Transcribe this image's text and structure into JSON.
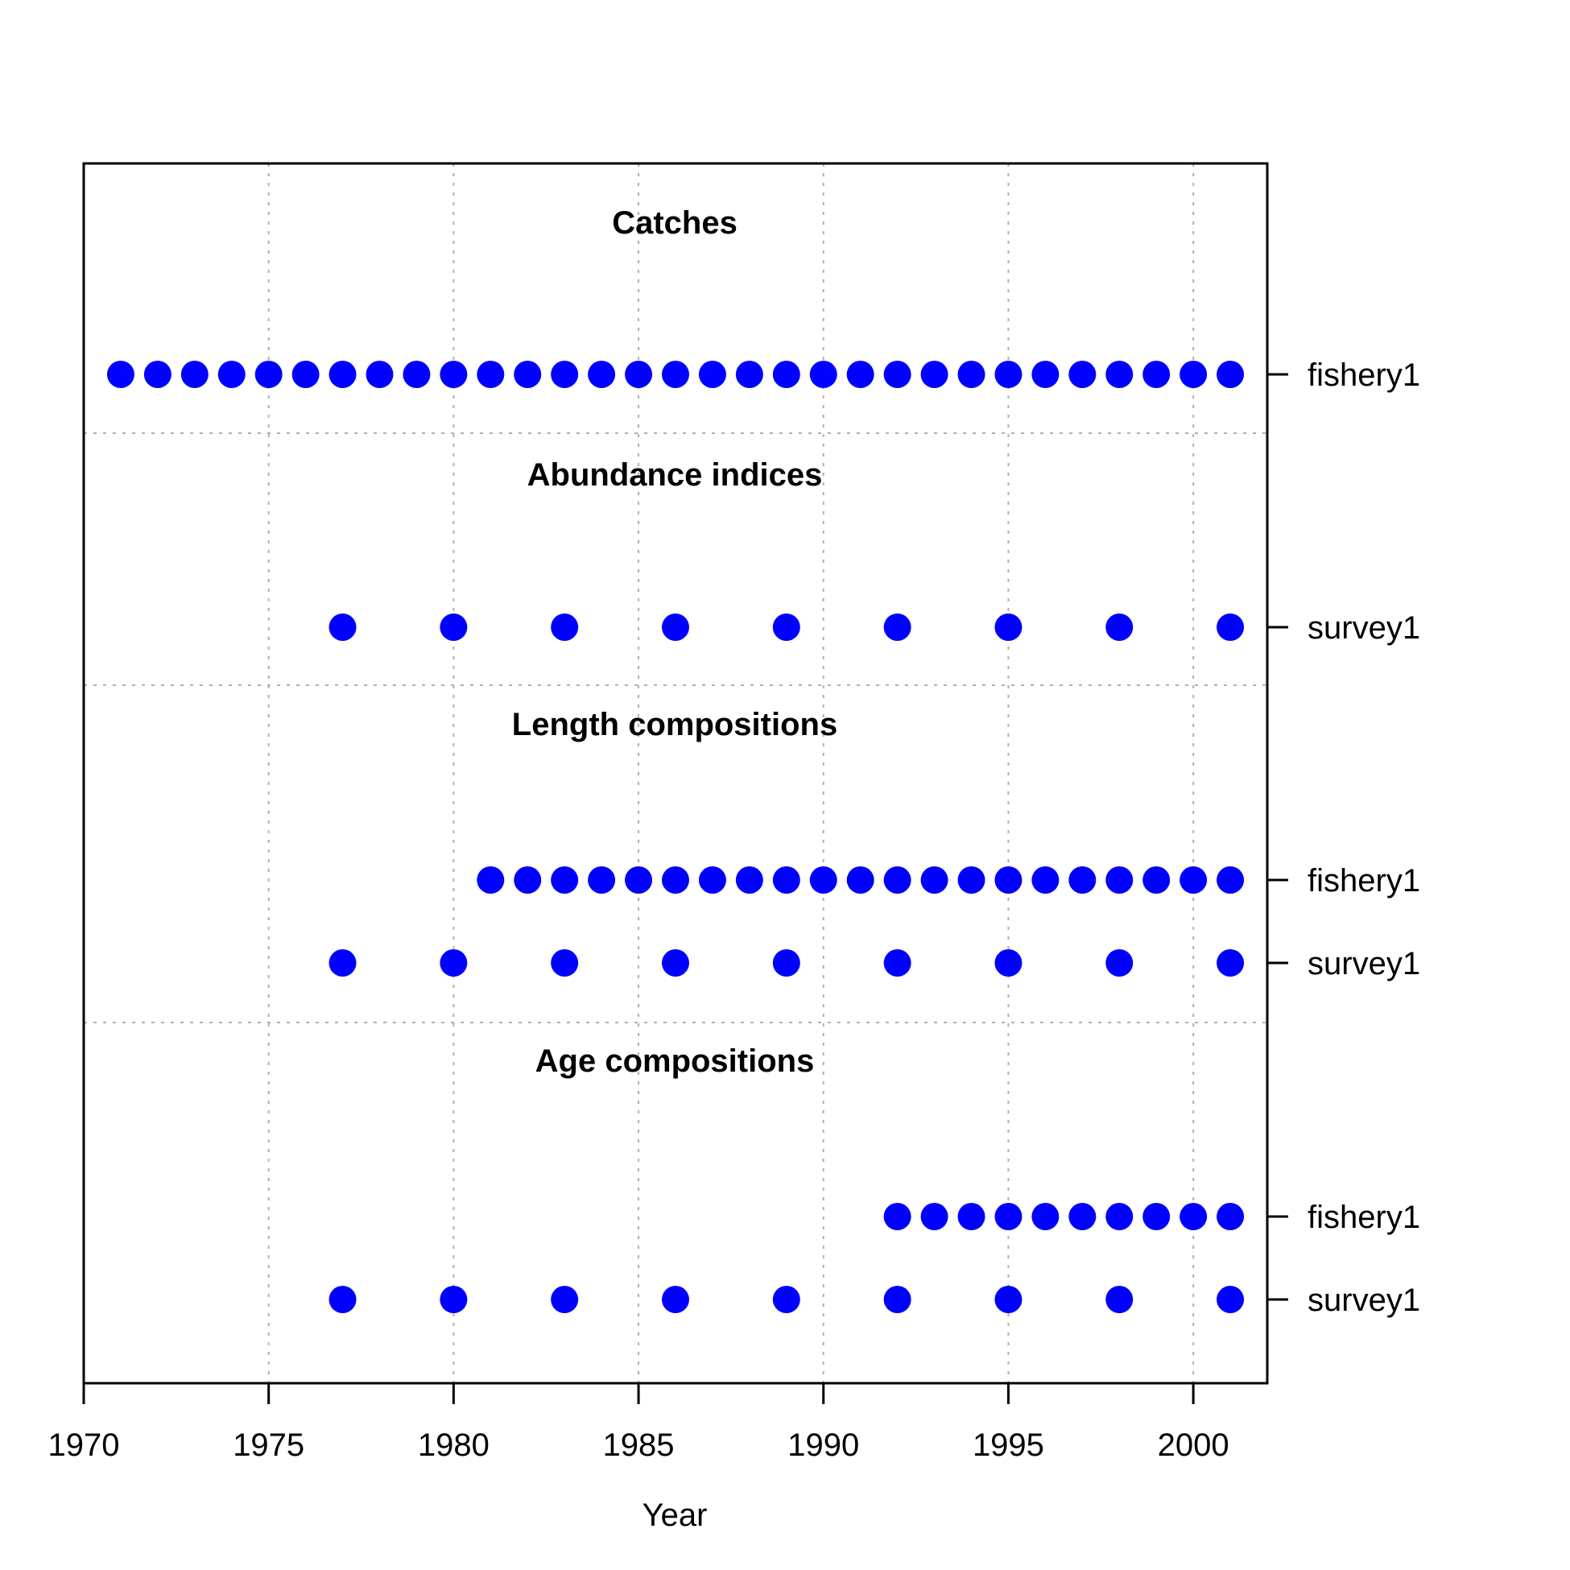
{
  "chart_data": {
    "type": "scatter",
    "xlabel": "Year",
    "xlim": [
      1970,
      2002
    ],
    "x_ticks": [
      1970,
      1975,
      1980,
      1985,
      1990,
      1995,
      2000
    ],
    "vertical_grid": true,
    "color": "#0000ff",
    "sections": [
      {
        "title": "Catches",
        "rows": [
          {
            "label": "fishery1",
            "years": [
              1971,
              1972,
              1973,
              1974,
              1975,
              1976,
              1977,
              1978,
              1979,
              1980,
              1981,
              1982,
              1983,
              1984,
              1985,
              1986,
              1987,
              1988,
              1989,
              1990,
              1991,
              1992,
              1993,
              1994,
              1995,
              1996,
              1997,
              1998,
              1999,
              2000,
              2001
            ]
          }
        ]
      },
      {
        "title": "Abundance indices",
        "rows": [
          {
            "label": "survey1",
            "years": [
              1977,
              1980,
              1983,
              1986,
              1989,
              1992,
              1995,
              1998,
              2001
            ]
          }
        ]
      },
      {
        "title": "Length compositions",
        "rows": [
          {
            "label": "fishery1",
            "years": [
              1981,
              1982,
              1983,
              1984,
              1985,
              1986,
              1987,
              1988,
              1989,
              1990,
              1991,
              1992,
              1993,
              1994,
              1995,
              1996,
              1997,
              1998,
              1999,
              2000,
              2001
            ]
          },
          {
            "label": "survey1",
            "years": [
              1977,
              1980,
              1983,
              1986,
              1989,
              1992,
              1995,
              1998,
              2001
            ]
          }
        ]
      },
      {
        "title": "Age compositions",
        "rows": [
          {
            "label": "fishery1",
            "years": [
              1992,
              1993,
              1994,
              1995,
              1996,
              1997,
              1998,
              1999,
              2000,
              2001
            ]
          },
          {
            "label": "survey1",
            "years": [
              1977,
              1980,
              1983,
              1986,
              1989,
              1992,
              1995,
              1998,
              2001
            ]
          }
        ]
      }
    ]
  }
}
